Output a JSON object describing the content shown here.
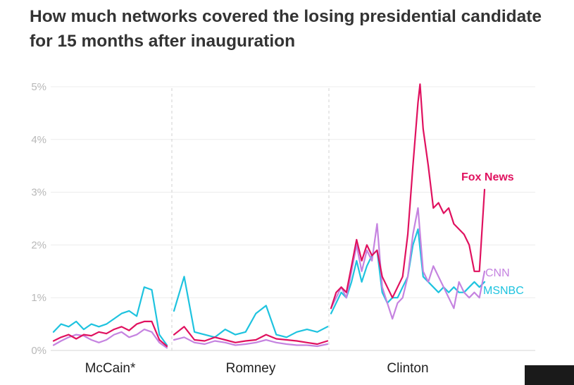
{
  "title": "How much networks covered the losing presidential candidate for 15 months after inauguration",
  "chart_data": {
    "type": "line",
    "title": "How much networks covered the losing presidential candidate for 15 months after inauguration",
    "ylabel": "",
    "ylim": [
      0,
      5
    ],
    "yticks": [
      0,
      1,
      2,
      3,
      4,
      5
    ],
    "ytick_labels": [
      "0%",
      "1%",
      "2%",
      "3%",
      "4%",
      "5%"
    ],
    "x_units": "months after inauguration",
    "xlim": [
      0,
      15
    ],
    "panels": [
      {
        "name": "McCain*",
        "series": [
          {
            "name": "Fox News",
            "values": [
              [
                0,
                0.18
              ],
              [
                1,
                0.25
              ],
              [
                2,
                0.3
              ],
              [
                3,
                0.22
              ],
              [
                4,
                0.3
              ],
              [
                5,
                0.28
              ],
              [
                6,
                0.35
              ],
              [
                7,
                0.32
              ],
              [
                8,
                0.4
              ],
              [
                9,
                0.45
              ],
              [
                10,
                0.38
              ],
              [
                11,
                0.5
              ],
              [
                12,
                0.55
              ],
              [
                13,
                0.55
              ],
              [
                14,
                0.2
              ],
              [
                15,
                0.08
              ]
            ]
          },
          {
            "name": "CNN",
            "values": [
              [
                0,
                0.1
              ],
              [
                1,
                0.18
              ],
              [
                2,
                0.25
              ],
              [
                3,
                0.3
              ],
              [
                4,
                0.28
              ],
              [
                5,
                0.2
              ],
              [
                6,
                0.15
              ],
              [
                7,
                0.2
              ],
              [
                8,
                0.3
              ],
              [
                9,
                0.35
              ],
              [
                10,
                0.25
              ],
              [
                11,
                0.3
              ],
              [
                12,
                0.4
              ],
              [
                13,
                0.35
              ],
              [
                14,
                0.15
              ],
              [
                15,
                0.05
              ]
            ]
          },
          {
            "name": "MSNBC",
            "values": [
              [
                0,
                0.35
              ],
              [
                1,
                0.5
              ],
              [
                2,
                0.45
              ],
              [
                3,
                0.55
              ],
              [
                4,
                0.4
              ],
              [
                5,
                0.5
              ],
              [
                6,
                0.45
              ],
              [
                7,
                0.5
              ],
              [
                8,
                0.6
              ],
              [
                9,
                0.7
              ],
              [
                10,
                0.75
              ],
              [
                11,
                0.65
              ],
              [
                12,
                1.2
              ],
              [
                13,
                1.15
              ],
              [
                14,
                0.3
              ],
              [
                15,
                0.1
              ]
            ]
          }
        ]
      },
      {
        "name": "Romney",
        "series": [
          {
            "name": "Fox News",
            "values": [
              [
                0,
                0.3
              ],
              [
                1,
                0.45
              ],
              [
                2,
                0.2
              ],
              [
                3,
                0.18
              ],
              [
                4,
                0.25
              ],
              [
                5,
                0.2
              ],
              [
                6,
                0.15
              ],
              [
                7,
                0.18
              ],
              [
                8,
                0.2
              ],
              [
                9,
                0.3
              ],
              [
                10,
                0.22
              ],
              [
                11,
                0.2
              ],
              [
                12,
                0.18
              ],
              [
                13,
                0.15
              ],
              [
                14,
                0.12
              ],
              [
                15,
                0.18
              ]
            ]
          },
          {
            "name": "CNN",
            "values": [
              [
                0,
                0.2
              ],
              [
                1,
                0.25
              ],
              [
                2,
                0.15
              ],
              [
                3,
                0.12
              ],
              [
                4,
                0.18
              ],
              [
                5,
                0.15
              ],
              [
                6,
                0.1
              ],
              [
                7,
                0.12
              ],
              [
                8,
                0.15
              ],
              [
                9,
                0.2
              ],
              [
                10,
                0.15
              ],
              [
                11,
                0.12
              ],
              [
                12,
                0.1
              ],
              [
                13,
                0.1
              ],
              [
                14,
                0.08
              ],
              [
                15,
                0.12
              ]
            ]
          },
          {
            "name": "MSNBC",
            "values": [
              [
                0,
                0.75
              ],
              [
                1,
                1.4
              ],
              [
                2,
                0.35
              ],
              [
                3,
                0.3
              ],
              [
                4,
                0.25
              ],
              [
                5,
                0.4
              ],
              [
                6,
                0.3
              ],
              [
                7,
                0.35
              ],
              [
                8,
                0.7
              ],
              [
                9,
                0.85
              ],
              [
                10,
                0.3
              ],
              [
                11,
                0.25
              ],
              [
                12,
                0.35
              ],
              [
                13,
                0.4
              ],
              [
                14,
                0.35
              ],
              [
                15,
                0.45
              ]
            ]
          }
        ]
      },
      {
        "name": "Clinton",
        "series": [
          {
            "name": "Fox News",
            "values": [
              [
                0,
                0.8
              ],
              [
                0.5,
                1.1
              ],
              [
                1,
                1.2
              ],
              [
                1.5,
                1.1
              ],
              [
                2,
                1.6
              ],
              [
                2.5,
                2.1
              ],
              [
                3,
                1.7
              ],
              [
                3.5,
                2.0
              ],
              [
                4,
                1.8
              ],
              [
                4.5,
                1.9
              ],
              [
                5,
                1.4
              ],
              [
                5.5,
                1.2
              ],
              [
                6,
                1.0
              ],
              [
                6.5,
                1.2
              ],
              [
                7,
                1.4
              ],
              [
                7.5,
                2.2
              ],
              [
                8,
                3.5
              ],
              [
                8.5,
                4.7
              ],
              [
                8.7,
                5.05
              ],
              [
                9,
                4.2
              ],
              [
                9.5,
                3.5
              ],
              [
                10,
                2.7
              ],
              [
                10.5,
                2.8
              ],
              [
                11,
                2.6
              ],
              [
                11.5,
                2.7
              ],
              [
                12,
                2.4
              ],
              [
                12.5,
                2.3
              ],
              [
                13,
                2.2
              ],
              [
                13.5,
                2.0
              ],
              [
                14,
                1.5
              ],
              [
                14.5,
                1.5
              ],
              [
                15,
                3.05
              ]
            ]
          },
          {
            "name": "CNN",
            "values": [
              [
                0,
                0.8
              ],
              [
                0.5,
                1.0
              ],
              [
                1,
                1.2
              ],
              [
                1.5,
                1.0
              ],
              [
                2,
                1.5
              ],
              [
                2.5,
                2.0
              ],
              [
                3,
                1.5
              ],
              [
                3.5,
                1.9
              ],
              [
                4,
                1.7
              ],
              [
                4.5,
                2.4
              ],
              [
                5,
                1.2
              ],
              [
                5.5,
                0.9
              ],
              [
                6,
                0.6
              ],
              [
                6.5,
                0.9
              ],
              [
                7,
                1.0
              ],
              [
                7.5,
                1.4
              ],
              [
                8,
                2.2
              ],
              [
                8.5,
                2.7
              ],
              [
                9,
                1.5
              ],
              [
                9.5,
                1.3
              ],
              [
                10,
                1.6
              ],
              [
                10.5,
                1.4
              ],
              [
                11,
                1.2
              ],
              [
                11.5,
                1.0
              ],
              [
                12,
                0.8
              ],
              [
                12.5,
                1.3
              ],
              [
                13,
                1.1
              ],
              [
                13.5,
                1.0
              ],
              [
                14,
                1.1
              ],
              [
                14.5,
                1.0
              ],
              [
                15,
                1.5
              ]
            ]
          },
          {
            "name": "MSNBC",
            "values": [
              [
                0,
                0.7
              ],
              [
                0.5,
                0.9
              ],
              [
                1,
                1.1
              ],
              [
                1.5,
                1.0
              ],
              [
                2,
                1.3
              ],
              [
                2.5,
                1.7
              ],
              [
                3,
                1.3
              ],
              [
                3.5,
                1.6
              ],
              [
                4,
                1.8
              ],
              [
                4.5,
                1.9
              ],
              [
                5,
                1.1
              ],
              [
                5.5,
                0.9
              ],
              [
                6,
                1.0
              ],
              [
                6.5,
                1.0
              ],
              [
                7,
                1.2
              ],
              [
                7.5,
                1.4
              ],
              [
                8,
                2.0
              ],
              [
                8.5,
                2.3
              ],
              [
                9,
                1.4
              ],
              [
                9.5,
                1.3
              ],
              [
                10,
                1.2
              ],
              [
                10.5,
                1.1
              ],
              [
                11,
                1.2
              ],
              [
                11.5,
                1.1
              ],
              [
                12,
                1.2
              ],
              [
                12.5,
                1.1
              ],
              [
                13,
                1.1
              ],
              [
                13.5,
                1.2
              ],
              [
                14,
                1.3
              ],
              [
                14.5,
                1.2
              ],
              [
                15,
                1.3
              ]
            ]
          }
        ]
      }
    ],
    "series_labels": [
      {
        "name": "Fox News",
        "color": "#e0115f"
      },
      {
        "name": "CNN",
        "color": "#c583e0"
      },
      {
        "name": "MSNBC",
        "color": "#1ec3df"
      }
    ],
    "grid": true
  }
}
